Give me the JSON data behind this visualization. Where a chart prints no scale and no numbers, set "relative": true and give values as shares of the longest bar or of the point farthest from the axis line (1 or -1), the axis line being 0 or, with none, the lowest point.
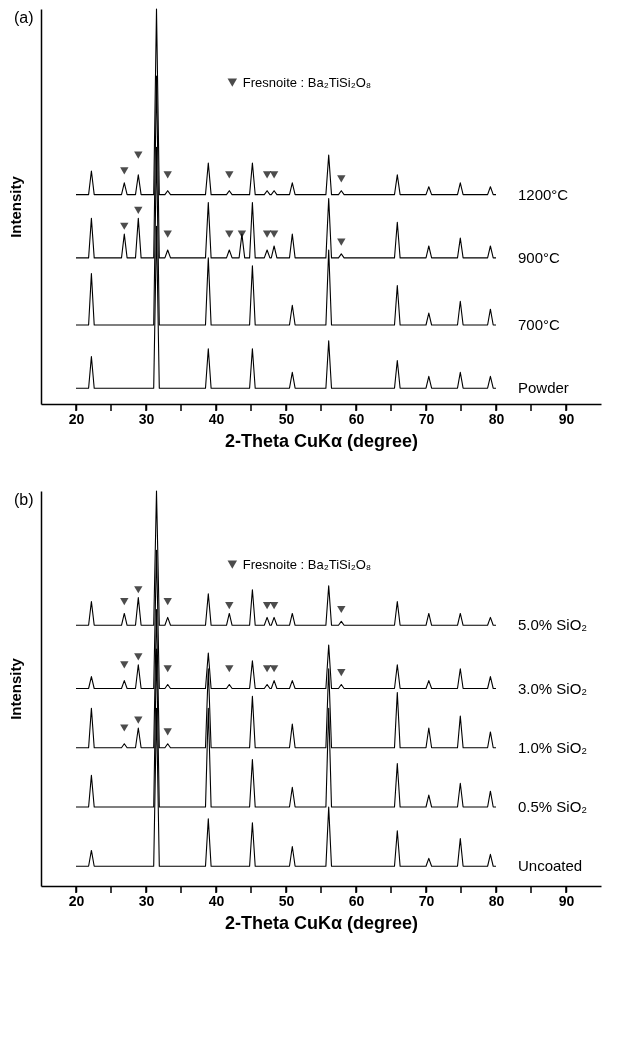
{
  "chart_data": [
    {
      "type": "line",
      "title": "(a)",
      "xlabel": "2-Theta   CuKα (degree)",
      "ylabel": "Intensity",
      "relative": true,
      "xlim": [
        15,
        95
      ],
      "xticks": [
        20,
        {
          "value": 25,
          "label": null
        },
        30,
        {
          "value": 35,
          "label": null
        },
        40,
        {
          "value": 45,
          "label": null
        },
        50,
        {
          "value": 55,
          "label": null
        },
        60,
        {
          "value": 65,
          "label": null
        },
        70,
        {
          "value": 75,
          "label": null
        },
        80,
        {
          "value": 85,
          "label": null
        },
        90
      ],
      "grid": false,
      "legend": "top",
      "x": [
        20,
        21.8,
        22.2,
        22.6,
        26.5,
        26.9,
        27.3,
        28.5,
        28.9,
        29.3,
        31.1,
        31.5,
        31.9,
        32.7,
        33.1,
        33.5,
        38.5,
        38.9,
        39.3,
        41.5,
        41.9,
        42.3,
        43.3,
        43.7,
        44.1,
        44.8,
        45.2,
        45.6,
        46.9,
        47.3,
        47.7,
        47.9,
        48.3,
        48.7,
        50.5,
        50.9,
        51.3,
        55.7,
        56.1,
        56.5,
        57.5,
        57.9,
        58.3,
        65.5,
        65.9,
        66.3,
        70.0,
        70.4,
        70.8,
        74.5,
        74.9,
        75.3,
        78.8,
        79.2,
        79.6,
        80
      ],
      "series": [
        {
          "name": "1200°C",
          "color": "#000000",
          "values": [
            0.53,
            0.53,
            0.59,
            0.53,
            0.53,
            0.56,
            0.53,
            0.53,
            0.58,
            0.53,
            0.53,
            1,
            0.53,
            0.53,
            0.54,
            0.53,
            0.53,
            0.61,
            0.53,
            0.53,
            0.54,
            0.53,
            0.53,
            0.53,
            0.53,
            0.53,
            0.61,
            0.53,
            0.53,
            0.54,
            0.53,
            0.53,
            0.54,
            0.53,
            0.53,
            0.56,
            0.53,
            0.53,
            0.63,
            0.53,
            0.53,
            0.54,
            0.53,
            0.53,
            0.58,
            0.53,
            0.53,
            0.55,
            0.53,
            0.53,
            0.56,
            0.53,
            0.53,
            0.55,
            0.53,
            0.53
          ]
        },
        {
          "name": "900°C",
          "color": "#000000",
          "values": [
            0.37,
            0.37,
            0.47,
            0.37,
            0.37,
            0.43,
            0.37,
            0.37,
            0.47,
            0.37,
            0.37,
            0.83,
            0.37,
            0.37,
            0.39,
            0.37,
            0.37,
            0.51,
            0.37,
            0.37,
            0.39,
            0.37,
            0.37,
            0.43,
            0.37,
            0.37,
            0.51,
            0.37,
            0.37,
            0.39,
            0.37,
            0.37,
            0.4,
            0.37,
            0.37,
            0.43,
            0.37,
            0.37,
            0.52,
            0.37,
            0.37,
            0.38,
            0.37,
            0.37,
            0.46,
            0.37,
            0.37,
            0.4,
            0.37,
            0.37,
            0.42,
            0.37,
            0.37,
            0.4,
            0.37,
            0.37
          ]
        },
        {
          "name": "700°C",
          "color": "#000000",
          "values": [
            0.2,
            0.2,
            0.33,
            0.2,
            0.2,
            0.2,
            0.2,
            0.2,
            0.2,
            0.2,
            0.2,
            0.65,
            0.2,
            0.2,
            0.2,
            0.2,
            0.2,
            0.37,
            0.2,
            0.2,
            0.2,
            0.2,
            0.2,
            0.2,
            0.2,
            0.2,
            0.35,
            0.2,
            0.2,
            0.2,
            0.2,
            0.2,
            0.2,
            0.2,
            0.2,
            0.25,
            0.2,
            0.2,
            0.39,
            0.2,
            0.2,
            0.2,
            0.2,
            0.2,
            0.3,
            0.2,
            0.2,
            0.23,
            0.2,
            0.2,
            0.26,
            0.2,
            0.2,
            0.24,
            0.2,
            0.2
          ]
        },
        {
          "name": "Powder",
          "color": "#000000",
          "values": [
            0.04,
            0.04,
            0.12,
            0.04,
            0.04,
            0.04,
            0.04,
            0.04,
            0.04,
            0.04,
            0.04,
            0.45,
            0.04,
            0.04,
            0.04,
            0.04,
            0.04,
            0.14,
            0.04,
            0.04,
            0.04,
            0.04,
            0.04,
            0.04,
            0.04,
            0.04,
            0.14,
            0.04,
            0.04,
            0.04,
            0.04,
            0.04,
            0.04,
            0.04,
            0.04,
            0.08,
            0.04,
            0.04,
            0.16,
            0.04,
            0.04,
            0.04,
            0.04,
            0.04,
            0.11,
            0.04,
            0.04,
            0.07,
            0.04,
            0.04,
            0.08,
            0.04,
            0.04,
            0.07,
            0.04,
            0.04
          ]
        },
        {
          "name": "Fresnoite : Ba₂TiSi₂O₈",
          "type": "scatter",
          "marker": "triangle",
          "color": "#000000",
          "x": [
            26.9,
            28.9,
            33.1,
            41.9,
            47.3,
            48.3,
            57.9,
            26.9,
            28.9,
            33.1,
            41.9,
            43.7,
            47.3,
            48.3,
            57.9
          ],
          "values": [
            0.59,
            0.63,
            0.58,
            0.58,
            0.58,
            0.58,
            0.57,
            0.45,
            0.49,
            0.43,
            0.43,
            0.43,
            0.43,
            0.43,
            0.41
          ]
        }
      ]
    },
    {
      "type": "line",
      "title": "(b)",
      "xlabel": "2-Theta   CuKα (degree)",
      "ylabel": "Intensity",
      "relative": true,
      "xlim": [
        15,
        95
      ],
      "xticks": [
        20,
        {
          "value": 25,
          "label": null
        },
        30,
        {
          "value": 35,
          "label": null
        },
        40,
        {
          "value": 45,
          "label": null
        },
        50,
        {
          "value": 55,
          "label": null
        },
        60,
        {
          "value": 65,
          "label": null
        },
        70,
        {
          "value": 75,
          "label": null
        },
        80,
        {
          "value": 85,
          "label": null
        },
        90
      ],
      "grid": false,
      "legend": "top",
      "x": [
        20,
        21.8,
        22.2,
        22.6,
        26.5,
        26.9,
        27.3,
        28.5,
        28.9,
        29.3,
        31.1,
        31.5,
        31.9,
        32.7,
        33.1,
        33.5,
        38.5,
        38.9,
        39.3,
        41.5,
        41.9,
        42.3,
        43.3,
        43.7,
        44.1,
        44.8,
        45.2,
        45.6,
        46.9,
        47.3,
        47.7,
        47.9,
        48.3,
        48.7,
        50.5,
        50.9,
        51.3,
        55.7,
        56.1,
        56.5,
        57.5,
        57.9,
        58.3,
        65.5,
        65.9,
        66.3,
        70.0,
        70.4,
        70.8,
        74.5,
        74.9,
        75.3,
        78.8,
        79.2,
        79.6,
        80
      ],
      "series": [
        {
          "name": "5.0% SiO₂",
          "color": "#000000",
          "values": [
            0.66,
            0.66,
            0.72,
            0.66,
            0.66,
            0.69,
            0.66,
            0.66,
            0.73,
            0.66,
            0.66,
            1,
            0.66,
            0.66,
            0.68,
            0.66,
            0.66,
            0.74,
            0.66,
            0.66,
            0.69,
            0.66,
            0.66,
            0.66,
            0.66,
            0.66,
            0.75,
            0.66,
            0.66,
            0.68,
            0.66,
            0.66,
            0.68,
            0.66,
            0.66,
            0.69,
            0.66,
            0.66,
            0.76,
            0.66,
            0.66,
            0.67,
            0.66,
            0.66,
            0.72,
            0.66,
            0.66,
            0.69,
            0.66,
            0.66,
            0.69,
            0.66,
            0.66,
            0.68,
            0.66,
            0.66
          ]
        },
        {
          "name": "3.0% SiO₂",
          "color": "#000000",
          "values": [
            0.5,
            0.5,
            0.53,
            0.5,
            0.5,
            0.52,
            0.5,
            0.5,
            0.56,
            0.5,
            0.5,
            0.85,
            0.5,
            0.5,
            0.51,
            0.5,
            0.5,
            0.59,
            0.5,
            0.5,
            0.51,
            0.5,
            0.5,
            0.5,
            0.5,
            0.5,
            0.57,
            0.5,
            0.5,
            0.51,
            0.5,
            0.5,
            0.52,
            0.5,
            0.5,
            0.52,
            0.5,
            0.5,
            0.61,
            0.5,
            0.5,
            0.51,
            0.5,
            0.5,
            0.56,
            0.5,
            0.5,
            0.52,
            0.5,
            0.5,
            0.55,
            0.5,
            0.5,
            0.53,
            0.5,
            0.5
          ]
        },
        {
          "name": "1.0% SiO₂",
          "color": "#000000",
          "values": [
            0.35,
            0.35,
            0.45,
            0.35,
            0.35,
            0.36,
            0.35,
            0.35,
            0.4,
            0.35,
            0.35,
            0.7,
            0.35,
            0.35,
            0.36,
            0.35,
            0.35,
            0.55,
            0.35,
            0.35,
            0.35,
            0.35,
            0.35,
            0.35,
            0.35,
            0.35,
            0.48,
            0.35,
            0.35,
            0.35,
            0.35,
            0.35,
            0.35,
            0.35,
            0.35,
            0.41,
            0.35,
            0.35,
            0.55,
            0.35,
            0.35,
            0.35,
            0.35,
            0.35,
            0.49,
            0.35,
            0.35,
            0.4,
            0.35,
            0.35,
            0.43,
            0.35,
            0.35,
            0.39,
            0.35,
            0.35
          ]
        },
        {
          "name": "0.5% SiO₂",
          "color": "#000000",
          "values": [
            0.2,
            0.2,
            0.28,
            0.2,
            0.2,
            0.2,
            0.2,
            0.2,
            0.2,
            0.2,
            0.2,
            0.6,
            0.2,
            0.2,
            0.2,
            0.2,
            0.2,
            0.45,
            0.2,
            0.2,
            0.2,
            0.2,
            0.2,
            0.2,
            0.2,
            0.2,
            0.32,
            0.2,
            0.2,
            0.2,
            0.2,
            0.2,
            0.2,
            0.2,
            0.2,
            0.25,
            0.2,
            0.2,
            0.45,
            0.2,
            0.2,
            0.2,
            0.2,
            0.2,
            0.31,
            0.2,
            0.2,
            0.23,
            0.2,
            0.2,
            0.26,
            0.2,
            0.2,
            0.24,
            0.2,
            0.2
          ]
        },
        {
          "name": "Uncoated",
          "color": "#000000",
          "values": [
            0.05,
            0.05,
            0.09,
            0.05,
            0.05,
            0.05,
            0.05,
            0.05,
            0.05,
            0.05,
            0.05,
            0.45,
            0.05,
            0.05,
            0.05,
            0.05,
            0.05,
            0.17,
            0.05,
            0.05,
            0.05,
            0.05,
            0.05,
            0.05,
            0.05,
            0.05,
            0.16,
            0.05,
            0.05,
            0.05,
            0.05,
            0.05,
            0.05,
            0.05,
            0.05,
            0.1,
            0.05,
            0.05,
            0.2,
            0.05,
            0.05,
            0.05,
            0.05,
            0.05,
            0.14,
            0.05,
            0.05,
            0.07,
            0.05,
            0.05,
            0.12,
            0.05,
            0.05,
            0.08,
            0.05,
            0.05
          ]
        },
        {
          "name": "Fresnoite : Ba₂TiSi₂O₈",
          "type": "scatter",
          "marker": "triangle",
          "color": "#000000",
          "x": [
            26.9,
            28.9,
            33.1,
            41.9,
            47.3,
            48.3,
            57.9,
            26.9,
            28.9,
            33.1,
            41.9,
            47.3,
            48.3,
            57.9,
            26.9,
            28.9,
            33.1
          ],
          "values": [
            0.72,
            0.75,
            0.72,
            0.71,
            0.71,
            0.71,
            0.7,
            0.56,
            0.58,
            0.55,
            0.55,
            0.55,
            0.55,
            0.54,
            0.4,
            0.42,
            0.39
          ]
        }
      ]
    }
  ]
}
